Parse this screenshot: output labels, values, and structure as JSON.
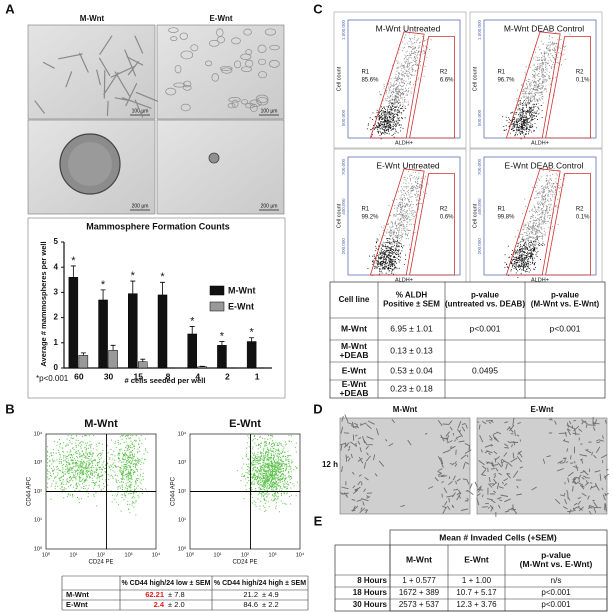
{
  "panel_labels": [
    "A",
    "B",
    "C",
    "D",
    "E"
  ],
  "panel_a": {
    "columns": [
      "M-Wnt",
      "E-Wnt"
    ],
    "scale_bars": [
      "100 µm",
      "100 µm",
      "200 µm",
      "200 µm"
    ]
  },
  "chart_data": {
    "type": "bar",
    "title": "Mammosphere Formation Counts",
    "x_label": "# cells seeded per well",
    "y_label": "Average # mammospheres per well",
    "categories": [
      "60",
      "30",
      "15",
      "8",
      "4",
      "2",
      "1"
    ],
    "series": [
      {
        "name": "M-Wnt",
        "color": "#111111",
        "values": [
          3.6,
          2.7,
          2.95,
          2.9,
          1.35,
          0.9,
          1.05
        ],
        "errors": [
          0.45,
          0.4,
          0.5,
          0.5,
          0.3,
          0.15,
          0.15
        ]
      },
      {
        "name": "E-Wnt",
        "color": "#999999",
        "values": [
          0.5,
          0.7,
          0.25,
          0,
          0.05,
          0,
          0
        ],
        "errors": [
          0.1,
          0.2,
          0.1,
          0,
          0.02,
          0,
          0
        ]
      }
    ],
    "ylim": [
      0,
      5
    ],
    "yticks": [
      0,
      1,
      2,
      3,
      4,
      5
    ],
    "annotations": [
      "*",
      "*",
      "*",
      "*",
      "*",
      "*",
      "*"
    ],
    "footnote": "*p<0.001"
  },
  "panel_b": {
    "plots": [
      {
        "title": "M-Wnt"
      },
      {
        "title": "E-Wnt"
      }
    ],
    "x_label": "CD24 PE",
    "y_label": "CD44 APC",
    "ticks": [
      "10⁰",
      "10¹",
      "10²",
      "10³",
      "10⁴"
    ],
    "table": {
      "header": [
        "% CD44 high/24 low ± SEM",
        "% CD44 high/24 high ± SEM"
      ],
      "rows": [
        {
          "label": "M-Wnt",
          "cells": [
            [
              "62.21",
              "± 7.8"
            ],
            [
              "21.2",
              "± 4.9"
            ]
          ]
        },
        {
          "label": "E-Wnt",
          "cells": [
            [
              "2.4",
              "± 2.0"
            ],
            [
              "84.6",
              "± 2.2"
            ]
          ]
        }
      ],
      "highlight_color": "#e0201e"
    }
  },
  "panel_c": {
    "plots": [
      {
        "title": "M-Wnt Untreated",
        "r1": [
          "R1",
          "85.6%"
        ],
        "r2": [
          "R2",
          "6.6%"
        ]
      },
      {
        "title": "M-Wnt DEAB Control",
        "r1": [
          "R1",
          "96.7%"
        ],
        "r2": [
          "R2",
          "0.1%"
        ]
      },
      {
        "title": "E-Wnt Untreated",
        "r1": [
          "R1",
          "99.2%"
        ],
        "r2": [
          "R2",
          "0.6%"
        ]
      },
      {
        "title": "E-Wnt DEAB Control",
        "r1": [
          "R1",
          "99.8%"
        ],
        "r2": [
          "R2",
          "0.1%"
        ]
      }
    ],
    "y_label": "Cell count",
    "x_label": "ALDH+",
    "yticks_top": [
      "1,000,000",
      "500,000"
    ],
    "yticks_bottom": [
      "700,000",
      "400,000",
      "200,000"
    ],
    "table": {
      "header": [
        [
          "Cell line"
        ],
        [
          "% ALDH",
          "Positive ± SEM"
        ],
        [
          "p-value",
          "(untreated vs. DEAB)"
        ],
        [
          "p-value",
          "(M-Wnt vs. E-Wnt)"
        ]
      ],
      "rows": [
        [
          [
            "M-Wnt"
          ],
          [
            "6.95 ± 1.01"
          ],
          [
            "p<0.001"
          ],
          [
            "p<0.001"
          ]
        ],
        [
          [
            "M-Wnt",
            "+DEAB"
          ],
          [
            "0.13 ± 0.13"
          ],
          null,
          null
        ],
        [
          [
            "E-Wnt"
          ],
          [
            "0.53 ± 0.04"
          ],
          [
            "0.0495"
          ],
          null
        ],
        [
          [
            "E-Wnt",
            "+DEAB"
          ],
          [
            "0.23 ± 0.18"
          ],
          null,
          null
        ]
      ]
    }
  },
  "panel_d": {
    "columns": [
      "M-Wnt",
      "E-Wnt"
    ],
    "row_label": "12 h"
  },
  "panel_e": {
    "title": "Mean # Invaded Cells (+SEM)",
    "header": [
      [
        "M-Wnt"
      ],
      [
        "E-Wnt"
      ],
      [
        "p-value",
        "(M-Wnt vs. E-Wnt)"
      ]
    ],
    "rows": [
      {
        "label": "8 Hours",
        "cells": [
          "1 + 0.577",
          "1 + 1.00",
          "n/s"
        ]
      },
      {
        "label": "18 Hours",
        "cells": [
          "1672 + 389",
          "10.7 + 5.17",
          "p<0.001"
        ]
      },
      {
        "label": "30 Hours",
        "cells": [
          "2573 + 537",
          "12.3 + 3.76",
          "p<0.001"
        ]
      }
    ]
  }
}
